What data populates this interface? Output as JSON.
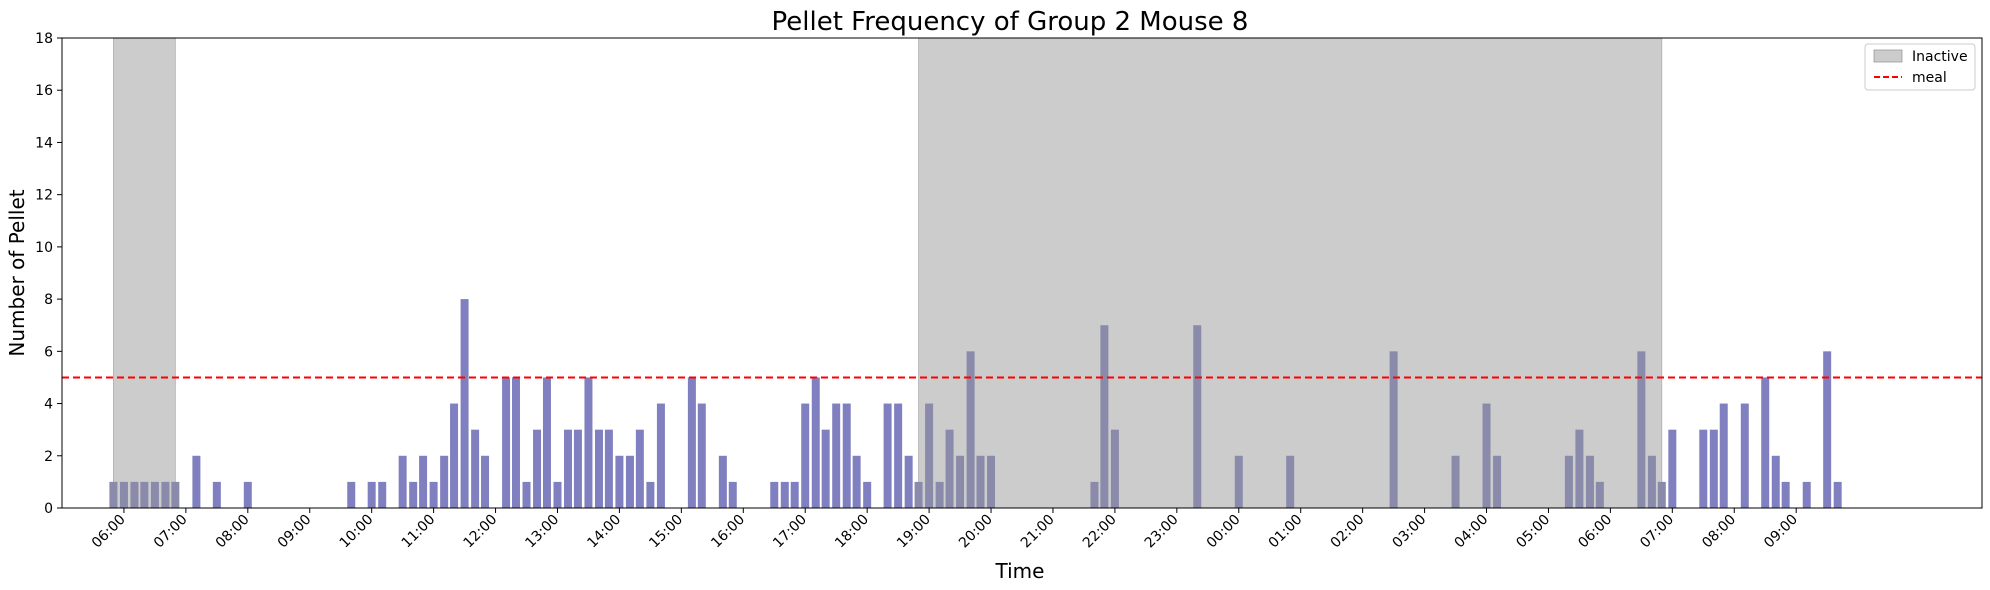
{
  "chart_data": {
    "type": "bar",
    "title": "Pellet Frequency of Group 2 Mouse 8",
    "xlabel": "Time",
    "ylabel": "Number of Pellet",
    "ylim": [
      0,
      18
    ],
    "yticks": [
      0,
      2,
      4,
      6,
      8,
      10,
      12,
      14,
      16,
      18
    ],
    "x_unit": "hours",
    "xlim": [
      5.0,
      36.0
    ],
    "xticks": [
      {
        "x": 6,
        "label": "06:00"
      },
      {
        "x": 7,
        "label": "07:00"
      },
      {
        "x": 8,
        "label": "08:00"
      },
      {
        "x": 9,
        "label": "09:00"
      },
      {
        "x": 10,
        "label": "10:00"
      },
      {
        "x": 11,
        "label": "11:00"
      },
      {
        "x": 12,
        "label": "12:00"
      },
      {
        "x": 13,
        "label": "13:00"
      },
      {
        "x": 14,
        "label": "14:00"
      },
      {
        "x": 15,
        "label": "15:00"
      },
      {
        "x": 16,
        "label": "16:00"
      },
      {
        "x": 17,
        "label": "17:00"
      },
      {
        "x": 18,
        "label": "18:00"
      },
      {
        "x": 19,
        "label": "19:00"
      },
      {
        "x": 20,
        "label": "20:00"
      },
      {
        "x": 21,
        "label": "21:00"
      },
      {
        "x": 22,
        "label": "22:00"
      },
      {
        "x": 23,
        "label": "23:00"
      },
      {
        "x": 24,
        "label": "00:00"
      },
      {
        "x": 25,
        "label": "01:00"
      },
      {
        "x": 26,
        "label": "02:00"
      },
      {
        "x": 27,
        "label": "03:00"
      },
      {
        "x": 28,
        "label": "04:00"
      },
      {
        "x": 29,
        "label": "05:00"
      },
      {
        "x": 30,
        "label": "06:00"
      },
      {
        "x": 31,
        "label": "07:00"
      },
      {
        "x": 32,
        "label": "08:00"
      },
      {
        "x": 33,
        "label": "09:00"
      }
    ],
    "inactive_periods": [
      [
        5.83,
        6.83
      ],
      [
        18.83,
        30.83
      ]
    ],
    "meal_threshold": 5,
    "legend": [
      {
        "label": "Inactive",
        "kind": "patch"
      },
      {
        "label": "meal",
        "kind": "dashed-line"
      }
    ],
    "legend_position": "top-right",
    "bar_color": "#8080c0",
    "bar_color_inactive": "#8a8aaa",
    "inactive_color": "#cccccc",
    "meal_color": "#ff0000",
    "x": [
      5.83,
      6.0,
      6.17,
      6.33,
      6.5,
      6.67,
      6.83,
      7.17,
      7.5,
      8.0,
      9.67,
      10.0,
      10.17,
      10.5,
      10.67,
      10.83,
      11.0,
      11.17,
      11.33,
      11.5,
      11.67,
      11.83,
      12.17,
      12.33,
      12.5,
      12.67,
      12.83,
      13.0,
      13.17,
      13.33,
      13.5,
      13.67,
      13.83,
      14.0,
      14.17,
      14.33,
      14.5,
      14.67,
      15.17,
      15.33,
      15.67,
      15.83,
      16.5,
      16.67,
      16.83,
      17.0,
      17.17,
      17.33,
      17.5,
      17.67,
      17.83,
      18.0,
      18.33,
      18.5,
      18.67,
      18.83,
      19.0,
      19.17,
      19.33,
      19.5,
      19.67,
      19.83,
      20.0,
      21.67,
      21.83,
      22.0,
      23.33,
      24.0,
      24.83,
      26.5,
      27.5,
      28.0,
      28.17,
      29.33,
      29.5,
      29.67,
      29.83,
      30.5,
      30.67,
      30.83,
      31.0,
      31.5,
      31.67,
      31.83,
      32.17,
      32.5,
      32.67,
      32.83,
      33.17,
      33.5,
      33.67
    ],
    "values": [
      1,
      1,
      1,
      1,
      1,
      1,
      1,
      2,
      1,
      1,
      1,
      1,
      1,
      2,
      1,
      2,
      1,
      2,
      4,
      8,
      3,
      2,
      5,
      5,
      1,
      3,
      5,
      1,
      3,
      3,
      5,
      3,
      3,
      2,
      2,
      3,
      1,
      4,
      5,
      4,
      2,
      1,
      1,
      1,
      1,
      4,
      5,
      3,
      4,
      4,
      2,
      1,
      4,
      4,
      2,
      1,
      4,
      1,
      3,
      2,
      6,
      2,
      2,
      1,
      7,
      3,
      7,
      2,
      2,
      6,
      2,
      4,
      2,
      2,
      3,
      2,
      1,
      6,
      2,
      1,
      3,
      3,
      3,
      4,
      4,
      5,
      2,
      1,
      1,
      6,
      1
    ]
  }
}
